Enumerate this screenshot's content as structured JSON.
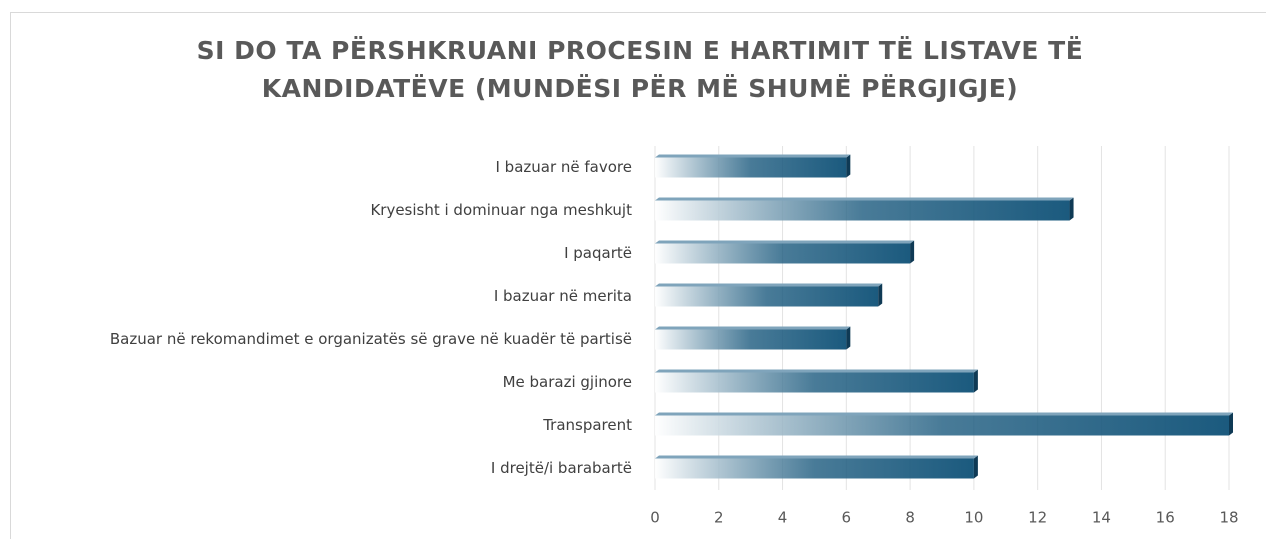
{
  "chart_data": {
    "type": "bar",
    "orientation": "horizontal",
    "title": "SI DO TA PËRSHKRUANI PROCESIN E HARTIMIT TË LISTAVE TË KANDIDATËVE (MUNDËSI PËR MË SHUMË PËRGJIGJE)",
    "categories": [
      "I bazuar në favore",
      "Kryesisht i dominuar nga meshkujt",
      "I paqartë",
      "I bazuar në merita",
      "Bazuar në rekomandimet e organizatës së grave në kuadër të partisë",
      "Me barazi gjinore",
      "Transparent",
      "I drejtë/i barabartë"
    ],
    "values": [
      6,
      13,
      8,
      7,
      6,
      10,
      18,
      10
    ],
    "color": "#1b5a7e",
    "xlim": [
      0,
      18
    ],
    "xticks": [
      0,
      2,
      4,
      6,
      8,
      10,
      12,
      14,
      16,
      18
    ],
    "grid": true
  }
}
